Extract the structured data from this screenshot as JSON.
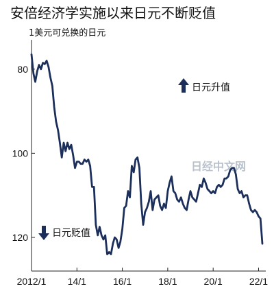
{
  "chart_data": {
    "type": "line",
    "title": "安倍经济学实施以来日元不断贬值",
    "subtitle": "1美元可兑换的日元",
    "y_inverted": true,
    "ylim": [
      74,
      128
    ],
    "yticks": [
      80,
      100,
      120
    ],
    "xticks": [
      "2012/1",
      "14/1",
      "16/1",
      "18/1",
      "20/1",
      "22/1"
    ],
    "xlim": [
      "2012-01",
      "2022-03"
    ],
    "grid": false,
    "annotations": {
      "up": "日元升值",
      "down": "日元贬值"
    },
    "watermark": "日经中文网",
    "series": [
      {
        "x": [
          "2012-01",
          "2012-02",
          "2012-03",
          "2012-04",
          "2012-05",
          "2012-06",
          "2012-07",
          "2012-08",
          "2012-09",
          "2012-10",
          "2012-11",
          "2012-12",
          "2013-01",
          "2013-02",
          "2013-03",
          "2013-04",
          "2013-05",
          "2013-06",
          "2013-07",
          "2013-08",
          "2013-09",
          "2013-10",
          "2013-11",
          "2013-12",
          "2014-01",
          "2014-02",
          "2014-03",
          "2014-04",
          "2014-05",
          "2014-06",
          "2014-07",
          "2014-08",
          "2014-09",
          "2014-10",
          "2014-11",
          "2014-12",
          "2015-01",
          "2015-02",
          "2015-03",
          "2015-04",
          "2015-05",
          "2015-06",
          "2015-07",
          "2015-08",
          "2015-09",
          "2015-10",
          "2015-11",
          "2015-12",
          "2016-01",
          "2016-02",
          "2016-03",
          "2016-04",
          "2016-05",
          "2016-06",
          "2016-07",
          "2016-08",
          "2016-09",
          "2016-10",
          "2016-11",
          "2016-12",
          "2017-01",
          "2017-02",
          "2017-03",
          "2017-04",
          "2017-05",
          "2017-06",
          "2017-07",
          "2017-08",
          "2017-09",
          "2017-10",
          "2017-11",
          "2017-12",
          "2018-01",
          "2018-02",
          "2018-03",
          "2018-04",
          "2018-05",
          "2018-06",
          "2018-07",
          "2018-08",
          "2018-09",
          "2018-10",
          "2018-11",
          "2018-12",
          "2019-01",
          "2019-02",
          "2019-03",
          "2019-04",
          "2019-05",
          "2019-06",
          "2019-07",
          "2019-08",
          "2019-09",
          "2019-10",
          "2019-11",
          "2019-12",
          "2020-01",
          "2020-02",
          "2020-03",
          "2020-04",
          "2020-05",
          "2020-06",
          "2020-07",
          "2020-08",
          "2020-09",
          "2020-10",
          "2020-11",
          "2020-12",
          "2021-01",
          "2021-02",
          "2021-03",
          "2021-04",
          "2021-05",
          "2021-06",
          "2021-07",
          "2021-08",
          "2021-09",
          "2021-10",
          "2021-11",
          "2021-12",
          "2022-01",
          "2022-02",
          "2022-03"
        ],
        "values": [
          76.5,
          81,
          83,
          80.5,
          79,
          80,
          78.5,
          78.8,
          78,
          79.5,
          82,
          84,
          89,
          92.5,
          94.5,
          97.5,
          101,
          97.5,
          99.5,
          97.5,
          99,
          98,
          100.5,
          103.5,
          102,
          102,
          102.5,
          102.5,
          101.5,
          102,
          101.5,
          103,
          108,
          108,
          117,
          119.5,
          117.5,
          119.5,
          120.5,
          119.5,
          124,
          123.5,
          124,
          121.5,
          120,
          120.5,
          122.5,
          121,
          118,
          113,
          112.5,
          109,
          110.5,
          103,
          104.5,
          101.5,
          101,
          103.5,
          112,
          117,
          114,
          113,
          111.5,
          109,
          113.5,
          111,
          110.5,
          110,
          112.5,
          113.5,
          112,
          113,
          109,
          107,
          105.5,
          109,
          109.5,
          111,
          111.5,
          110.5,
          112,
          113,
          113.5,
          111,
          109,
          110.5,
          111,
          111.5,
          109.5,
          107.5,
          108,
          106,
          107,
          108.5,
          109,
          109.5,
          109,
          109.5,
          108,
          107.5,
          108,
          107.5,
          106,
          106,
          105.5,
          104,
          103.5,
          103.5,
          105,
          108.5,
          109.5,
          109,
          110.5,
          110,
          110,
          112,
          113.5,
          114,
          113.5,
          114,
          115,
          115.5,
          121.5
        ]
      }
    ]
  }
}
